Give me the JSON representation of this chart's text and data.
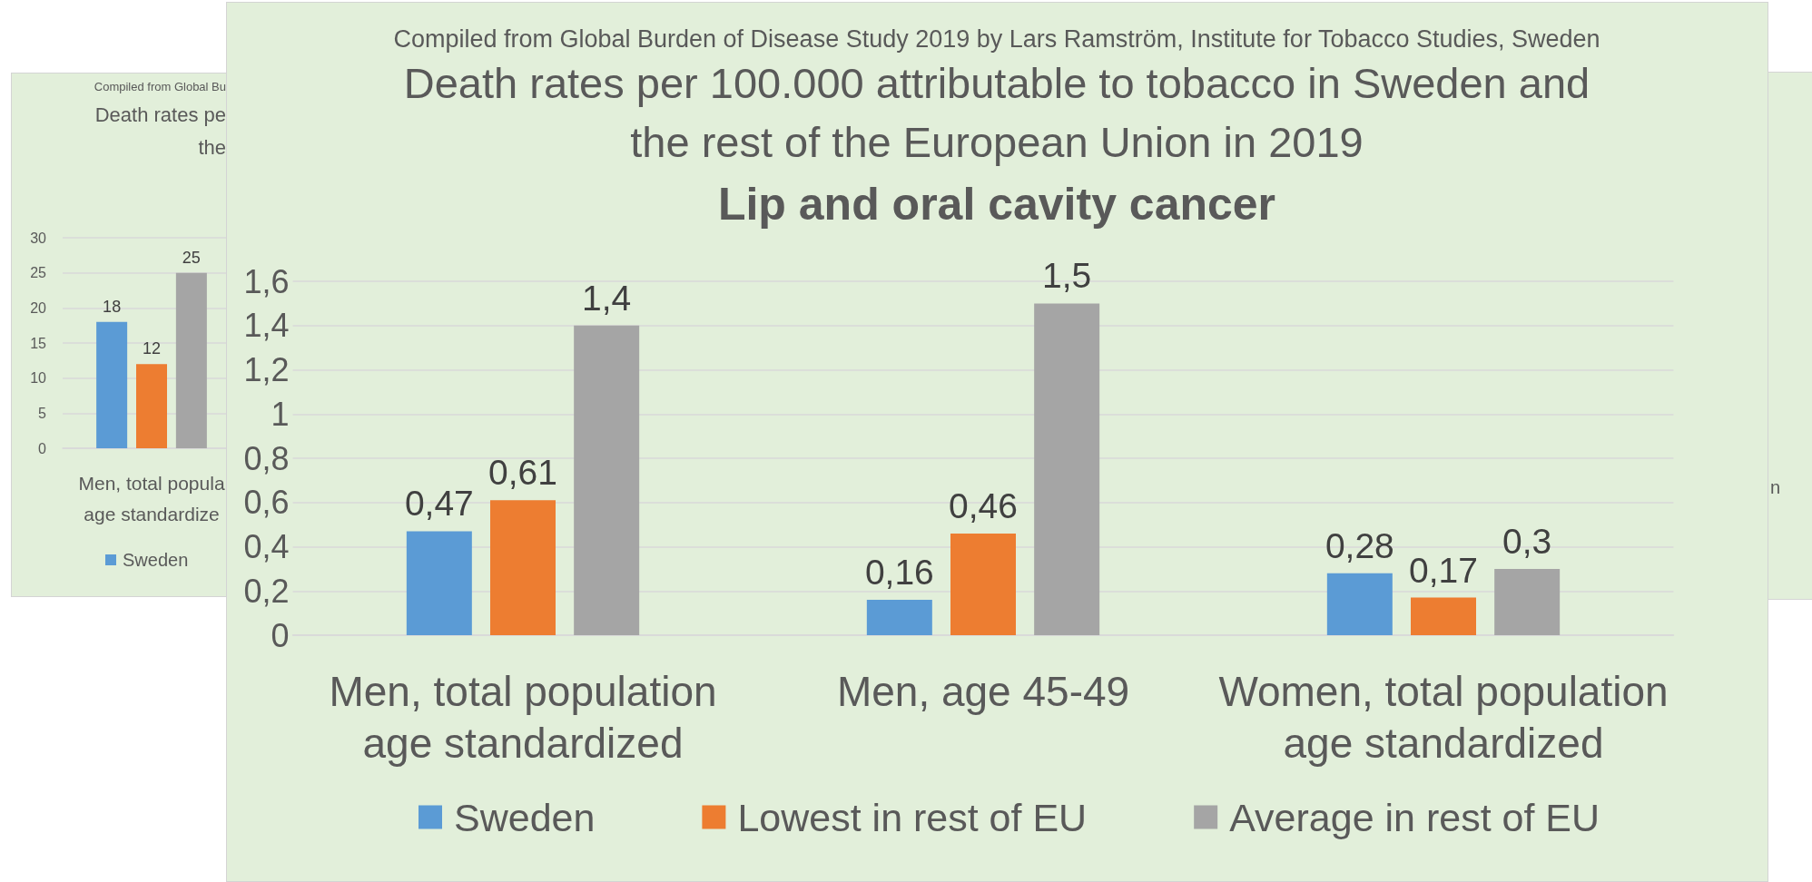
{
  "chart_data": [
    {
      "type": "bar",
      "annotations": [
        "Compiled from Global Bu"
      ],
      "title": "Death rates pe\nthe",
      "categories": [
        "Men, total popula\nage standardize"
      ],
      "series": [
        {
          "name": "Sweden",
          "color": "#5b9bd5",
          "values": [
            18
          ]
        },
        {
          "color": "#ed7d31",
          "values": [
            12
          ]
        },
        {
          "color": "#a5a5a5",
          "values": [
            25
          ]
        }
      ],
      "ylim": [
        0,
        30
      ],
      "yticks": [
        0,
        5,
        10,
        15,
        20,
        25,
        30
      ],
      "grid": "y",
      "legend": "bottom",
      "data_labels": true
    },
    {
      "type": "bar",
      "annotations": [
        "Compiled from Global Burden of Disease Study 2019 by Lars Ramström, Institute for Tobacco Studies, Sweden"
      ],
      "title": "Death rates per 100.000 attributable to tobacco in Sweden and\nthe rest of the European Union in 2019",
      "subtitle": "Lip and oral cavity cancer",
      "categories": [
        "Men, total population\nage standardized",
        "Men, age 45-49",
        "Women, total population\nage standardized"
      ],
      "series": [
        {
          "name": "Sweden",
          "color": "#5b9bd5",
          "values": [
            0.47,
            0.16,
            0.28
          ],
          "value_labels": [
            "0,47",
            "0,16",
            "0,28"
          ]
        },
        {
          "name": "Lowest in rest of EU",
          "color": "#ed7d31",
          "values": [
            0.61,
            0.46,
            0.17
          ],
          "value_labels": [
            "0,61",
            "0,46",
            "0,17"
          ]
        },
        {
          "name": "Average in rest of EU",
          "color": "#a5a5a5",
          "values": [
            1.4,
            1.5,
            0.3
          ],
          "value_labels": [
            "1,4",
            "1,5",
            "0,3"
          ]
        }
      ],
      "ylim": [
        0,
        1.6
      ],
      "yticks": [
        0,
        {
          "value": 0.2,
          "label": "0,2"
        },
        {
          "value": 0.4,
          "label": "0,4"
        },
        {
          "value": 0.6,
          "label": "0,6"
        },
        {
          "value": 0.8,
          "label": "0,8"
        },
        1,
        {
          "value": 1.2,
          "label": "1,2"
        },
        {
          "value": 1.4,
          "label": "1,4"
        },
        {
          "value": 1.6,
          "label": "1,6"
        }
      ],
      "grid": "y",
      "legend": "bottom"
    },
    {
      "type": "other",
      "annotations": [
        "n"
      ]
    }
  ]
}
